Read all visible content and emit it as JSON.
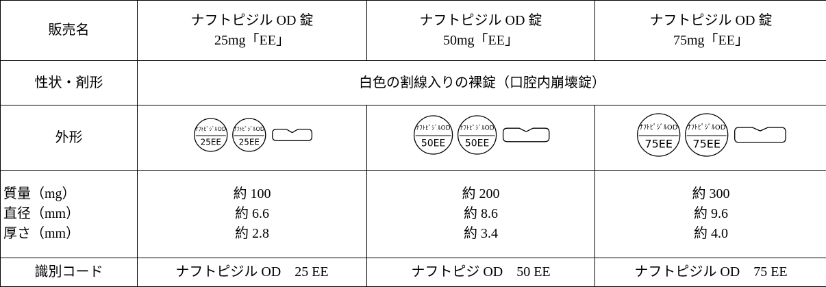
{
  "header": {
    "label": "販売名",
    "products": [
      {
        "name": "ナフトピジル OD 錠",
        "strength": "25mg「EE」"
      },
      {
        "name": "ナフトピジル OD 錠",
        "strength": "50mg「EE」"
      },
      {
        "name": "ナフトピジル OD 錠",
        "strength": "75mg「EE」"
      }
    ]
  },
  "shape": {
    "label": "性状・剤形",
    "value": "白色の割線入りの裸錠（口腔内崩壊錠）"
  },
  "appearance": {
    "label": "外形",
    "tablets": [
      {
        "imprint_top": "ﾅﾌﾄﾋﾟｼﾞﾙOD",
        "imprint_bottom": "25EE"
      },
      {
        "imprint_top": "ﾅﾌﾄﾋﾟｼﾞﾙOD",
        "imprint_bottom": "50EE"
      },
      {
        "imprint_top": "ﾅﾌﾄﾋﾟｼﾞﾙOD",
        "imprint_bottom": "75EE"
      }
    ]
  },
  "measurements": {
    "labels": [
      "質量（mg）",
      "直径（mm）",
      "厚さ（mm）"
    ],
    "values": [
      [
        "約 100",
        "約 6.6",
        "約 2.8"
      ],
      [
        "約 200",
        "約 8.6",
        "約 3.4"
      ],
      [
        "約 300",
        "約 9.6",
        "約 4.0"
      ]
    ]
  },
  "identification": {
    "label": "識別コード",
    "values": [
      "ナフトピジル OD　25 EE",
      "ナフトピジ OD　50 EE",
      "ナフトピジル OD　75 EE"
    ]
  }
}
